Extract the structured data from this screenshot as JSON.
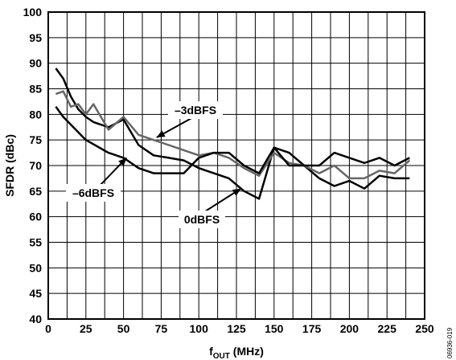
{
  "chart_data": {
    "type": "line",
    "xlabel": "f",
    "xlabel_subscript": "OUT",
    "xlabel_unit": " (MHz)",
    "ylabel": "SFDR (dBc)",
    "xlim": [
      0,
      250
    ],
    "ylim": [
      40,
      100
    ],
    "x_ticks": [
      0,
      25,
      50,
      75,
      100,
      125,
      150,
      175,
      200,
      225,
      250
    ],
    "y_ticks": [
      40,
      45,
      50,
      55,
      60,
      65,
      70,
      75,
      80,
      85,
      90,
      95,
      100
    ],
    "grid": true,
    "series": [
      {
        "name": "0dBFS",
        "color": "#000000",
        "x": [
          5,
          10,
          15,
          20,
          25,
          30,
          40,
          50,
          60,
          70,
          80,
          90,
          100,
          110,
          120,
          130,
          140,
          150,
          160,
          170,
          180,
          190,
          200,
          210,
          220,
          230,
          240
        ],
        "y": [
          89,
          87,
          83.5,
          81,
          79.5,
          78.5,
          77.5,
          79,
          74,
          72,
          71.5,
          71,
          69.5,
          68.5,
          67.5,
          65,
          63.5,
          73.5,
          72.5,
          70,
          67.5,
          66,
          67,
          65.5,
          68,
          67.5,
          67.5
        ]
      },
      {
        "name": "-3dBFS",
        "color": "#666666",
        "x": [
          5,
          10,
          15,
          20,
          25,
          30,
          40,
          50,
          60,
          70,
          80,
          90,
          100,
          110,
          120,
          130,
          140,
          150,
          160,
          170,
          180,
          190,
          200,
          210,
          220,
          230,
          240
        ],
        "y": [
          84,
          84.5,
          81.5,
          82,
          80,
          82,
          77,
          79.5,
          76,
          75,
          74,
          73,
          72,
          72.5,
          71.5,
          69.5,
          68,
          72.5,
          70.5,
          70,
          68.5,
          70,
          67.5,
          67.5,
          69,
          68.5,
          71
        ]
      },
      {
        "name": "-6dBFS",
        "color": "#000000",
        "x": [
          5,
          10,
          15,
          25,
          40,
          50,
          60,
          70,
          80,
          90,
          100,
          110,
          120,
          130,
          140,
          150,
          160,
          170,
          180,
          190,
          200,
          210,
          220,
          230,
          240
        ],
        "y": [
          81.5,
          79.5,
          78,
          75,
          72.5,
          71.5,
          69.5,
          68.5,
          68.5,
          68.5,
          71.5,
          72.5,
          72.5,
          70,
          68.5,
          73.5,
          70,
          70,
          70,
          72.5,
          71.5,
          70.5,
          71.5,
          70,
          71.5
        ]
      }
    ],
    "annotations": [
      {
        "text": "–3dBFS",
        "series": "-3dBFS",
        "point": [
          72,
          75.5
        ]
      },
      {
        "text": "–6dBFS",
        "series": "-6dBFS",
        "point": [
          52,
          71.5
        ]
      },
      {
        "text": "0dBFS",
        "series": "0dBFS",
        "point": [
          128,
          65.5
        ]
      }
    ],
    "figure_id": "06936-019"
  }
}
